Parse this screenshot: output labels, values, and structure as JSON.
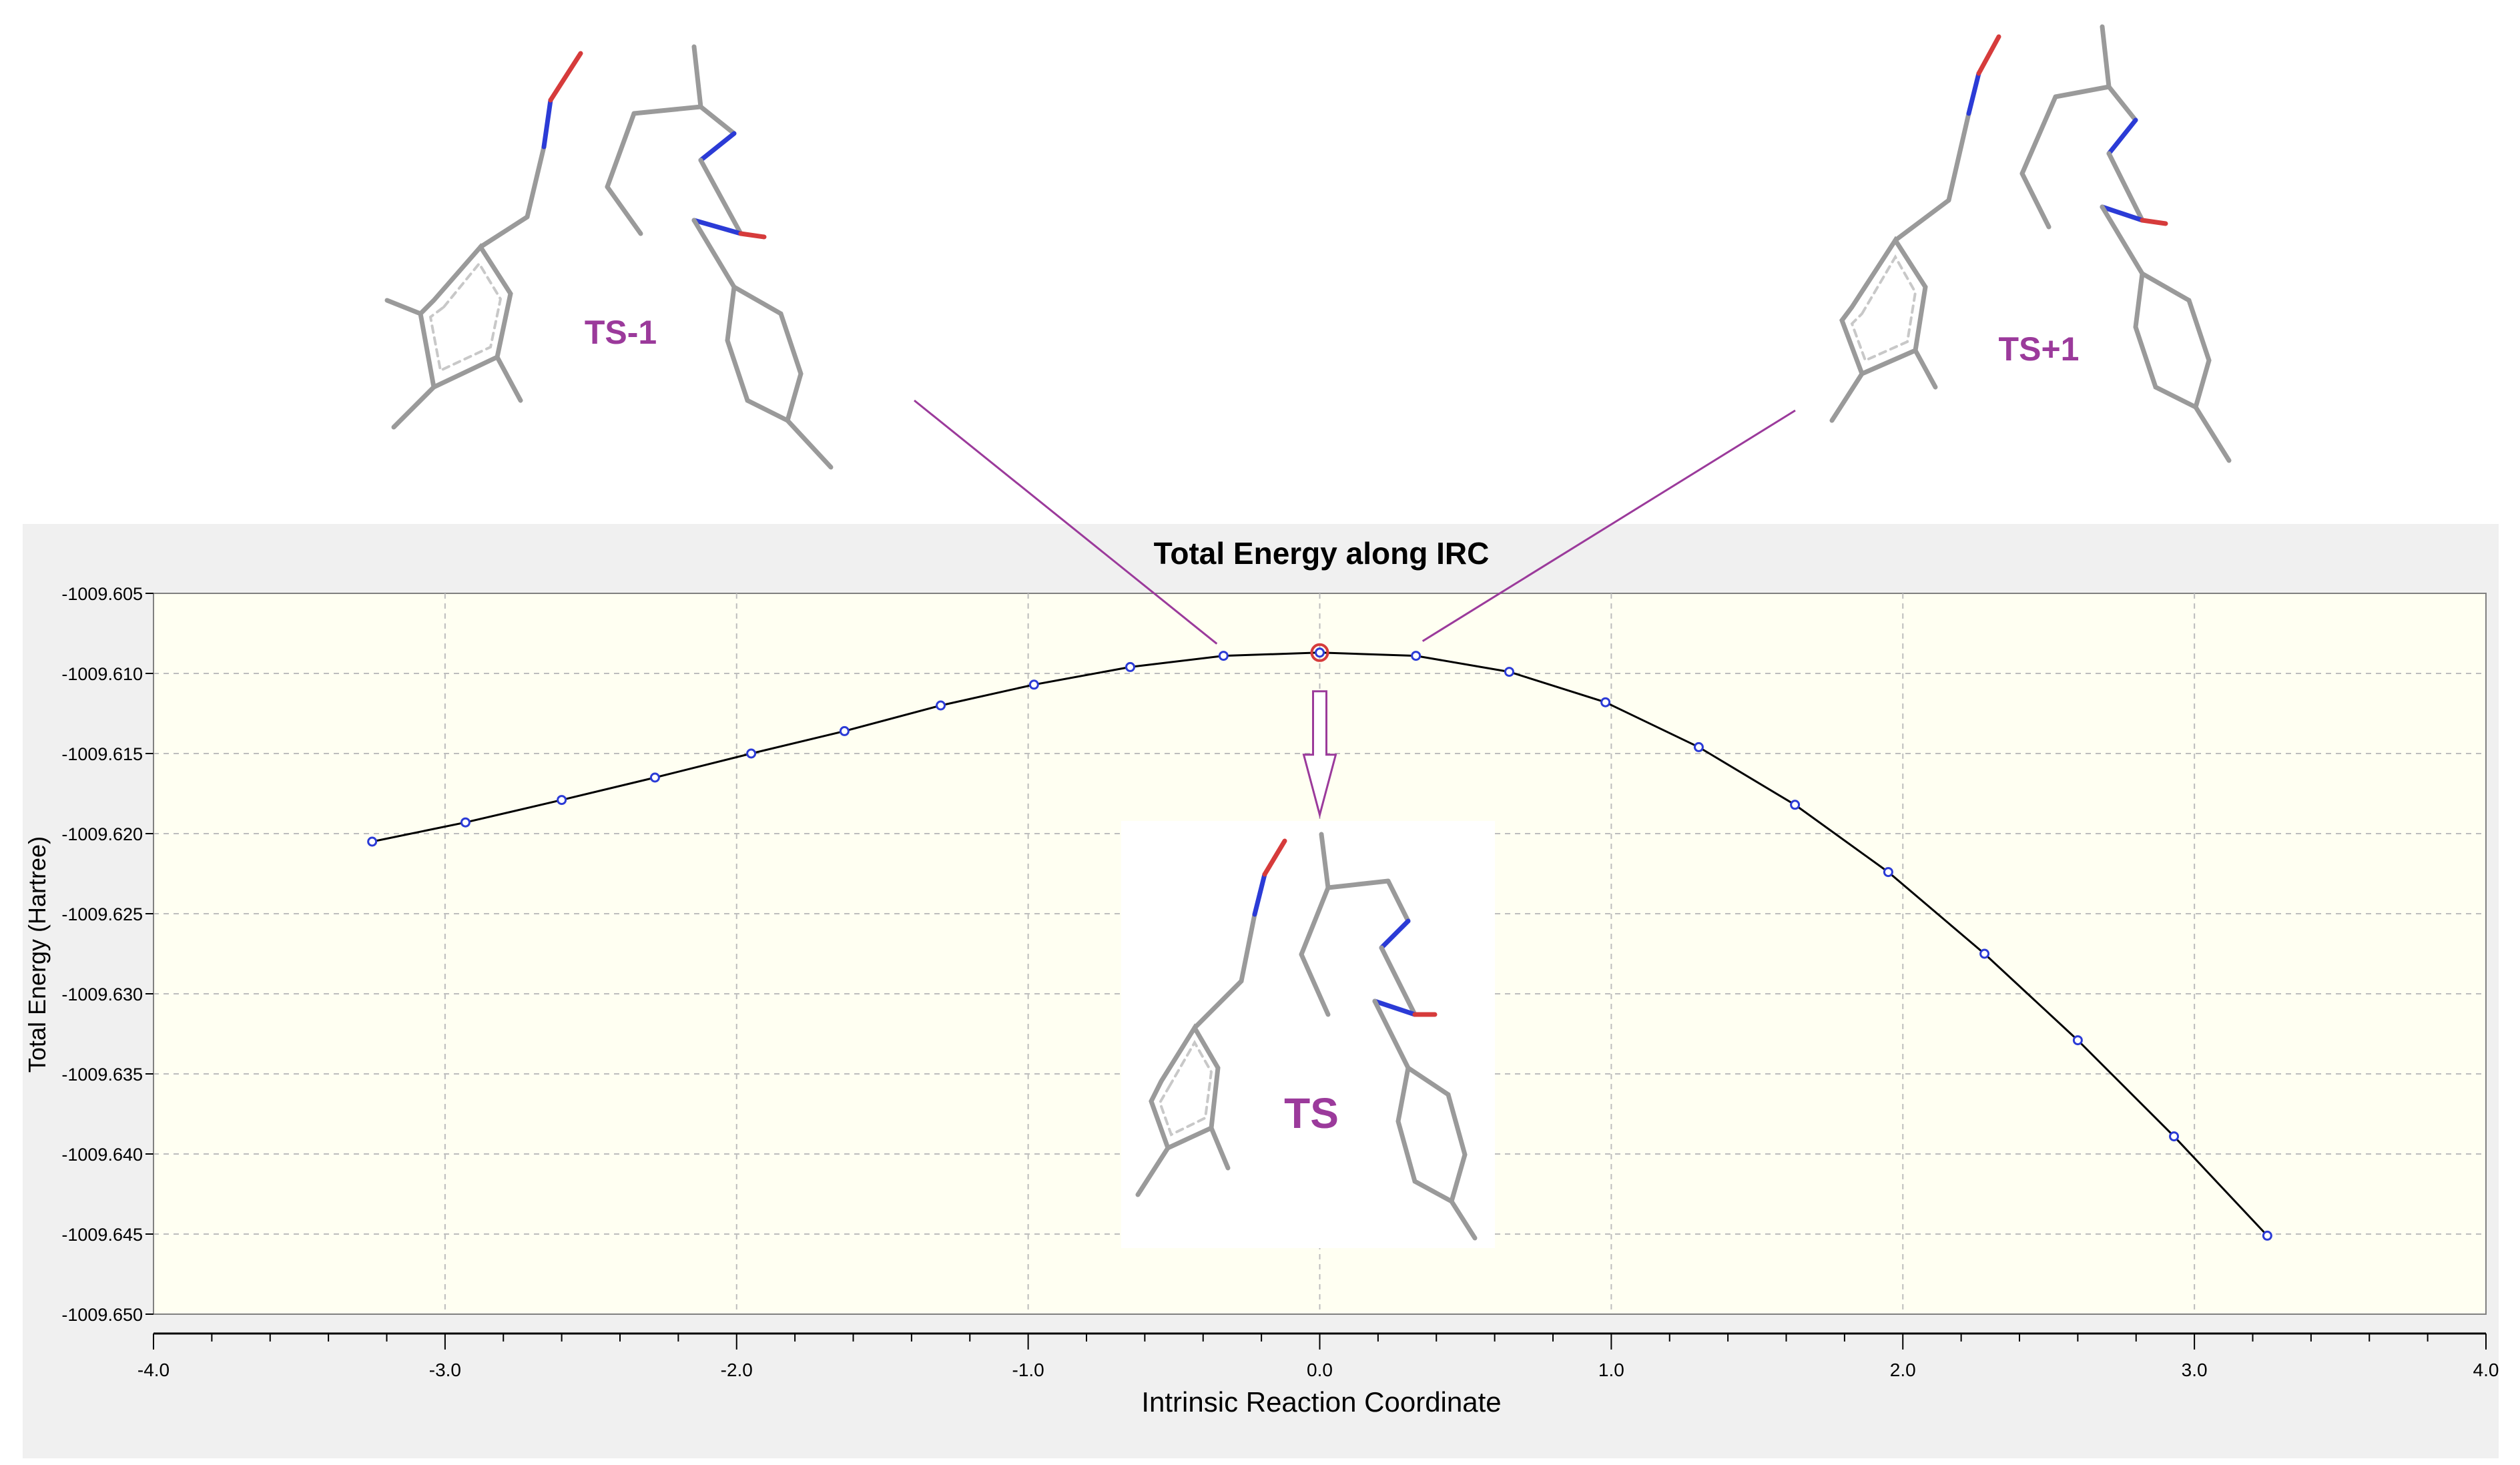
{
  "chart_data": {
    "type": "line",
    "title": "Total Energy along IRC",
    "xlabel": "Intrinsic Reaction Coordinate",
    "ylabel": "Total Energy (Hartree)",
    "xlim": [
      -4.0,
      4.0
    ],
    "ylim": [
      -1009.65,
      -1009.605
    ],
    "x_ticks": [
      "-4.0",
      "-3.0",
      "-2.0",
      "-1.0",
      "0.0",
      "1.0",
      "2.0",
      "3.0",
      "4.0"
    ],
    "y_ticks": [
      "-1009.605",
      "-1009.610",
      "-1009.615",
      "-1009.620",
      "-1009.625",
      "-1009.630",
      "-1009.635",
      "-1009.640",
      "-1009.645",
      "-1009.650"
    ],
    "grid": true,
    "series": [
      {
        "x": [
          -3.25,
          -2.93,
          -2.6,
          -2.28,
          -1.95,
          -1.63,
          -1.3,
          -0.98,
          -0.65,
          -0.33,
          0.0,
          0.33,
          0.65,
          0.98,
          1.3,
          1.63,
          1.95,
          2.28,
          2.6,
          2.93,
          3.25
        ],
        "y": [
          -1009.6205,
          -1009.6193,
          -1009.6179,
          -1009.6165,
          -1009.615,
          -1009.6136,
          -1009.612,
          -1009.6107,
          -1009.6096,
          -1009.6089,
          -1009.6087,
          -1009.6089,
          -1009.6099,
          -1009.6118,
          -1009.6146,
          -1009.6182,
          -1009.6224,
          -1009.6275,
          -1009.6329,
          -1009.6389,
          -1009.6451
        ]
      }
    ],
    "highlight_point": {
      "x": 0.0,
      "y": -1009.6087
    },
    "colors": {
      "line": "#000000",
      "marker": "#2b3bd6",
      "highlight": "#d63b3b",
      "plot_bg": "#fffff2",
      "frame_bg": "#f0f0f0",
      "grid": "#bdbdbd",
      "annotation": "#9b3a9b"
    }
  },
  "annotations": [
    {
      "label": "TS-1",
      "point_index": 9
    },
    {
      "label": "TS+1",
      "point_index": 11
    },
    {
      "label": "TS",
      "point_index": 10
    }
  ]
}
